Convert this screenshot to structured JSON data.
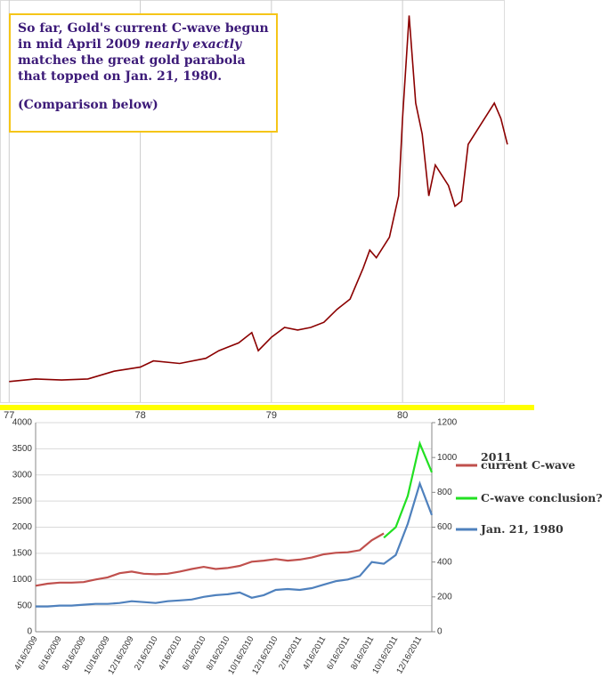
{
  "annotation": {
    "text_start": "So far, Gold's current C-wave begun in mid April 2009 ",
    "text_emphasis": "nearly exactly",
    "text_end": " matches the great gold parabola that topped on Jan. 21, 1980.",
    "note": "(Comparison below)"
  },
  "chart_data": [
    {
      "type": "line",
      "color": "#8b0000",
      "x": [
        77.0,
        77.2,
        77.4,
        77.6,
        77.8,
        78.0,
        78.1,
        78.3,
        78.5,
        78.6,
        78.75,
        78.85,
        78.9,
        79.0,
        79.1,
        79.2,
        79.3,
        79.4,
        79.5,
        79.6,
        79.7,
        79.75,
        79.8,
        79.9,
        79.97,
        80.0,
        80.05,
        80.1,
        80.15,
        80.2,
        80.25,
        80.35,
        80.4,
        80.45,
        80.5,
        80.6,
        80.7,
        80.75,
        80.8
      ],
      "values": [
        140,
        145,
        143,
        145,
        160,
        168,
        180,
        175,
        185,
        200,
        215,
        235,
        200,
        226,
        245,
        240,
        245,
        255,
        280,
        300,
        360,
        395,
        380,
        420,
        500,
        650,
        850,
        680,
        620,
        500,
        560,
        520,
        480,
        490,
        600,
        640,
        680,
        650,
        600
      ],
      "xlim": [
        76.93,
        80.78
      ],
      "ylim": [
        100,
        880
      ],
      "xticks": [
        77,
        78,
        79,
        80
      ],
      "grid": true
    },
    {
      "type": "line",
      "categories": [
        "4/16/2009",
        null,
        "6/16/2009",
        null,
        "8/16/2009",
        null,
        "10/16/2009",
        null,
        "12/16/2009",
        null,
        "2/16/2010",
        null,
        "4/16/2010",
        null,
        "6/16/2010",
        null,
        "8/16/2010",
        null,
        "10/16/2010",
        null,
        "12/16/2010",
        null,
        "2/16/2011",
        null,
        "4/16/2011",
        null,
        "6/16/2011",
        null,
        "8/16/2011",
        null,
        "10/16/2011",
        null,
        "12/16/2011",
        null
      ],
      "series": [
        {
          "name": "2011\ncurrent C-wave",
          "color": "#c0504d",
          "text_color": "#8b1a1a",
          "axis": "y",
          "values": [
            880,
            920,
            940,
            940,
            950,
            1000,
            1040,
            1120,
            1150,
            1110,
            1100,
            1110,
            1150,
            1200,
            1240,
            1200,
            1220,
            1260,
            1340,
            1360,
            1390,
            1360,
            1380,
            1420,
            1480,
            1510,
            1520,
            1560,
            1750,
            1880,
            null,
            null,
            null,
            null
          ]
        },
        {
          "name": "C-wave conclusion?",
          "color": "#22e022",
          "text_color": "#22cc22",
          "axis": "y",
          "values": [
            null,
            null,
            null,
            null,
            null,
            null,
            null,
            null,
            null,
            null,
            null,
            null,
            null,
            null,
            null,
            null,
            null,
            null,
            null,
            null,
            null,
            null,
            null,
            null,
            null,
            null,
            null,
            null,
            null,
            1800,
            2000,
            2600,
            3600,
            3050
          ]
        },
        {
          "name": "Jan. 21, 1980",
          "color": "#4f81bd",
          "text_color": "#3a5aa8",
          "axis": "y2",
          "values": [
            145,
            145,
            150,
            150,
            155,
            160,
            160,
            165,
            175,
            170,
            165,
            175,
            180,
            185,
            200,
            210,
            215,
            225,
            195,
            210,
            240,
            245,
            240,
            250,
            270,
            290,
            300,
            320,
            400,
            390,
            440,
            620,
            850,
            670
          ]
        }
      ],
      "ylim": [
        0,
        4000
      ],
      "yticks": [
        0,
        500,
        1000,
        1500,
        2000,
        2500,
        3000,
        3500,
        4000
      ],
      "y2lim": [
        0,
        1200
      ],
      "y2ticks": [
        0,
        200,
        400,
        600,
        800,
        1000,
        1200
      ],
      "grid": true,
      "legend": "right"
    }
  ]
}
